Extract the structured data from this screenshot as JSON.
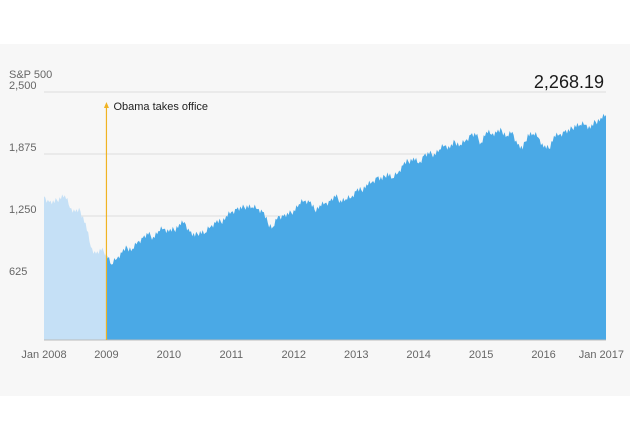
{
  "chart_data": {
    "type": "area",
    "ylabel": "S&P 500",
    "ylim": [
      0,
      2500
    ],
    "xlim": [
      "2008-01",
      "2017-01"
    ],
    "y_ticks": [
      "2,500",
      "1,875",
      "1,250",
      "625"
    ],
    "y_tick_values": [
      2500,
      1875,
      1250,
      625
    ],
    "x_ticks": [
      "Jan 2008",
      "2009",
      "2010",
      "2011",
      "2012",
      "2013",
      "2014",
      "2015",
      "2016",
      "Jan 2017"
    ],
    "x_tick_values": [
      "2008-01",
      "2009-01",
      "2010-01",
      "2011-01",
      "2012-01",
      "2013-01",
      "2014-01",
      "2015-01",
      "2016-01",
      "2017-01"
    ],
    "last_value_label": "2,268.19",
    "annotation": {
      "label": "Obama takes office",
      "date": "2009-01"
    },
    "colors": {
      "before": "#c5e0f6",
      "after": "#4aa9e6",
      "annotation_line": "#f0b323",
      "grid": "#dddddd"
    },
    "grid": true,
    "series": [
      {
        "x": [
          "2008-01",
          "2008-02",
          "2008-03",
          "2008-04",
          "2008-05",
          "2008-06",
          "2008-07",
          "2008-08",
          "2008-09",
          "2008-10",
          "2008-11",
          "2008-12",
          "2009-01",
          "2009-02",
          "2009-03",
          "2009-04",
          "2009-05",
          "2009-06",
          "2009-07",
          "2009-08",
          "2009-09",
          "2009-10",
          "2009-11",
          "2009-12",
          "2010-01",
          "2010-02",
          "2010-03",
          "2010-04",
          "2010-05",
          "2010-06",
          "2010-07",
          "2010-08",
          "2010-09",
          "2010-10",
          "2010-11",
          "2010-12",
          "2011-01",
          "2011-02",
          "2011-03",
          "2011-04",
          "2011-05",
          "2011-06",
          "2011-07",
          "2011-08",
          "2011-09",
          "2011-10",
          "2011-11",
          "2011-12",
          "2012-01",
          "2012-02",
          "2012-03",
          "2012-04",
          "2012-05",
          "2012-06",
          "2012-07",
          "2012-08",
          "2012-09",
          "2012-10",
          "2012-11",
          "2012-12",
          "2013-01",
          "2013-02",
          "2013-03",
          "2013-04",
          "2013-05",
          "2013-06",
          "2013-07",
          "2013-08",
          "2013-09",
          "2013-10",
          "2013-11",
          "2013-12",
          "2014-01",
          "2014-02",
          "2014-03",
          "2014-04",
          "2014-05",
          "2014-06",
          "2014-07",
          "2014-08",
          "2014-09",
          "2014-10",
          "2014-11",
          "2014-12",
          "2015-01",
          "2015-02",
          "2015-03",
          "2015-04",
          "2015-05",
          "2015-06",
          "2015-07",
          "2015-08",
          "2015-09",
          "2015-10",
          "2015-11",
          "2015-12",
          "2016-01",
          "2016-02",
          "2016-03",
          "2016-04",
          "2016-05",
          "2016-06",
          "2016-07",
          "2016-08",
          "2016-09",
          "2016-10",
          "2016-11",
          "2016-12",
          "2017-01"
        ],
        "values": [
          1450,
          1390,
          1380,
          1440,
          1460,
          1330,
          1290,
          1300,
          1180,
          940,
          870,
          900,
          880,
          760,
          820,
          880,
          930,
          920,
          990,
          1030,
          1060,
          1040,
          1100,
          1120,
          1090,
          1110,
          1170,
          1190,
          1090,
          1040,
          1100,
          1080,
          1140,
          1180,
          1190,
          1250,
          1290,
          1320,
          1320,
          1360,
          1340,
          1320,
          1290,
          1180,
          1140,
          1250,
          1250,
          1260,
          1310,
          1370,
          1400,
          1390,
          1310,
          1360,
          1380,
          1400,
          1440,
          1410,
          1420,
          1430,
          1500,
          1510,
          1570,
          1590,
          1640,
          1610,
          1690,
          1630,
          1680,
          1760,
          1800,
          1840,
          1780,
          1860,
          1870,
          1880,
          1920,
          1960,
          1930,
          2000,
          1970,
          2010,
          2070,
          2060,
          1990,
          2100,
          2070,
          2090,
          2110,
          2060,
          2100,
          1970,
          1920,
          2080,
          2080,
          2040,
          1940,
          1930,
          2060,
          2070,
          2100,
          2100,
          2170,
          2170,
          2170,
          2130,
          2200,
          2240,
          2268.19
        ]
      }
    ]
  }
}
